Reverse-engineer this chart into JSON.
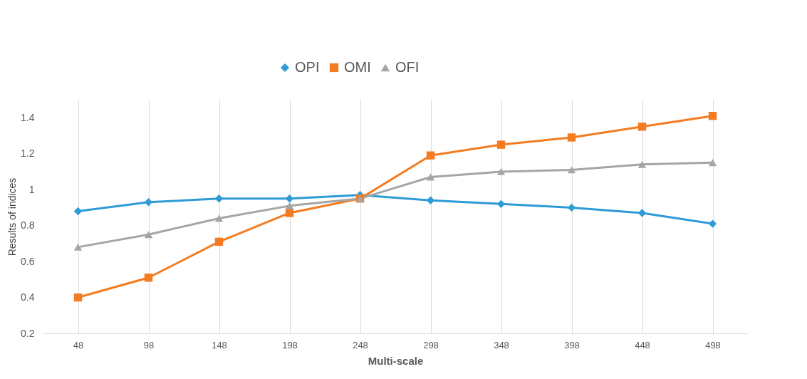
{
  "chart_data": {
    "type": "line",
    "xlabel": "Multi-scale",
    "ylabel": "Results of indices",
    "categories": [
      "48",
      "98",
      "148",
      "198",
      "248",
      "298",
      "348",
      "398",
      "448",
      "498"
    ],
    "series": [
      {
        "name": "OPI",
        "color": "#2e9bd6",
        "marker": "diamond",
        "values": [
          0.88,
          0.93,
          0.95,
          0.95,
          0.97,
          0.94,
          0.92,
          0.9,
          0.87,
          0.81
        ]
      },
      {
        "name": "OMI",
        "color": "#f47b20",
        "marker": "square",
        "values": [
          0.4,
          0.51,
          0.71,
          0.87,
          0.95,
          1.19,
          1.25,
          1.29,
          1.35,
          1.41
        ]
      },
      {
        "name": "OFI",
        "color": "#a5a5a5",
        "marker": "triangle",
        "values": [
          0.68,
          0.75,
          0.84,
          0.91,
          0.95,
          1.07,
          1.1,
          1.11,
          1.14,
          1.15
        ]
      }
    ],
    "ylim": [
      0.2,
      1.5
    ],
    "yticks": [
      0.2,
      0.4,
      0.6,
      0.8,
      1,
      1.2,
      1.4
    ],
    "grid": "x",
    "legend": "top",
    "line_style": "solid"
  }
}
